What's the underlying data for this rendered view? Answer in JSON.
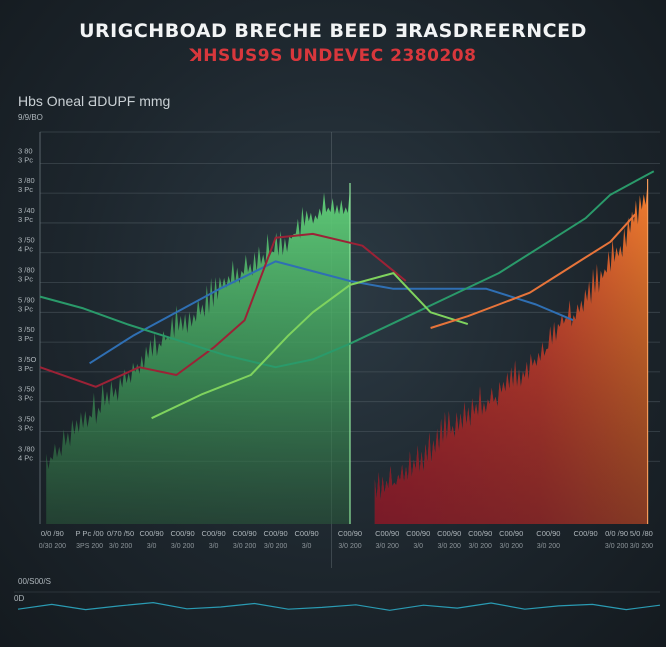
{
  "header": {
    "title": "URIGCHBOAD BRECHE  BEED ƎRASDREERNCED",
    "subtitle": "ꓘHSUS9S UNDEVEC  2380208"
  },
  "chart_heading": "Hbs Oneal ƋDUPF mmg",
  "y_unit": "9/9/BO",
  "mini_label": "00/S00/S",
  "mini_axis_label": "0D",
  "colors": {
    "green_area": "#4fbf6a",
    "red_area": "#e8483a",
    "orange_area": "#f07c32",
    "blue_line": "#2f6fb3",
    "crimson_line": "#9c2236",
    "teal_line": "#2a9a6a",
    "lime_line": "#7fd35e",
    "orange_line": "#e7743a",
    "mini_line": "#2a9bb3"
  },
  "chart_data": {
    "type": "area",
    "title": "URIGCHBOAD BRECHE  BEED ƎRASDREERNCED",
    "subtitle": "ꓘHSUS9S UNDEVEC  2380208",
    "ylim": [
      0,
      100
    ],
    "xlim": [
      0,
      100
    ],
    "grid": true,
    "y_ticks": [
      {
        "v": 100,
        "l1": "",
        "l2": ""
      },
      {
        "v": 92,
        "l1": "3 80",
        "l2": "3 Pc"
      },
      {
        "v": 84.4,
        "l1": "3 /80",
        "l2": "3 Pc"
      },
      {
        "v": 76.8,
        "l1": "3 /40",
        "l2": "3 Pc"
      },
      {
        "v": 69.2,
        "l1": "3 /50",
        "l2": "4 Pc"
      },
      {
        "v": 61.6,
        "l1": "3 /80",
        "l2": "3 Pc"
      },
      {
        "v": 54,
        "l1": "5 /90",
        "l2": "3 Pc"
      },
      {
        "v": 46.4,
        "l1": "3 /50",
        "l2": "3 Pc"
      },
      {
        "v": 38.8,
        "l1": "3 /5O",
        "l2": "3 Pc"
      },
      {
        "v": 31.2,
        "l1": "3 /50",
        "l2": "3 Pc"
      },
      {
        "v": 23.6,
        "l1": "3 /50",
        "l2": "3 Pc"
      },
      {
        "v": 16,
        "l1": "3 /80",
        "l2": "4 Pc"
      }
    ],
    "x_ticks": [
      {
        "x": 2,
        "l1": "0/0 /90",
        "l2": "0/30 200"
      },
      {
        "x": 8,
        "l1": "P Pc /00",
        "l2": "3PS 200"
      },
      {
        "x": 13,
        "l1": "0/70 /50",
        "l2": "3/0 200"
      },
      {
        "x": 18,
        "l1": "C00/90",
        "l2": "3/0"
      },
      {
        "x": 23,
        "l1": "C00/90",
        "l2": "3/0 200"
      },
      {
        "x": 28,
        "l1": "C00/90",
        "l2": "3/0"
      },
      {
        "x": 33,
        "l1": "C00/90",
        "l2": "3/0 200"
      },
      {
        "x": 38,
        "l1": "C00/90",
        "l2": "3/0 200"
      },
      {
        "x": 43,
        "l1": "C00/90",
        "l2": "3/0"
      },
      {
        "x": 50,
        "l1": "C00/90",
        "l2": "3/0 200"
      },
      {
        "x": 56,
        "l1": "C00/90",
        "l2": "3/0 200"
      },
      {
        "x": 61,
        "l1": "C00/90",
        "l2": "3/0"
      },
      {
        "x": 66,
        "l1": "C00/90",
        "l2": "3/0 200"
      },
      {
        "x": 71,
        "l1": "C00/90",
        "l2": "3/0 200"
      },
      {
        "x": 76,
        "l1": "C00/90",
        "l2": "3/0 200"
      },
      {
        "x": 82,
        "l1": "C00/90",
        "l2": "3/0 200"
      },
      {
        "x": 88,
        "l1": "C00/90",
        "l2": ""
      },
      {
        "x": 93,
        "l1": "0/0 /90",
        "l2": "3/0 200"
      },
      {
        "x": 97,
        "l1": "5/0 /80",
        "l2": "3/0 200"
      }
    ],
    "series": [
      {
        "type": "area",
        "color": "#4fbf6a",
        "x": [
          1,
          4,
          7,
          10,
          13,
          16,
          19,
          22,
          25,
          28,
          31,
          34,
          37,
          40,
          43,
          46,
          48,
          49.5,
          50
        ],
        "y": [
          15,
          21,
          25,
          30,
          35,
          41,
          45,
          50,
          52,
          58,
          63,
          66,
          69,
          72,
          77,
          80,
          79,
          81,
          83
        ]
      },
      {
        "type": "area",
        "color": "#e8483a",
        "x": [
          54,
          58,
          62,
          66,
          70,
          74,
          78,
          82,
          84,
          86,
          88,
          90,
          92,
          94,
          96,
          98
        ],
        "y": [
          7,
          11,
          16,
          24,
          28,
          33,
          38,
          45,
          52,
          53,
          57,
          61,
          66,
          71,
          78,
          84
        ]
      },
      {
        "type": "line",
        "color": "#2f6fb3",
        "x": [
          8,
          15,
          22,
          29,
          38,
          50,
          57,
          65,
          72,
          80,
          86
        ],
        "y": [
          41,
          48,
          54,
          60,
          67,
          62,
          60,
          60,
          60,
          56,
          52
        ]
      },
      {
        "type": "line",
        "color": "#9c2236",
        "x": [
          0,
          9,
          16,
          22,
          28,
          33,
          38,
          44,
          52,
          59
        ],
        "y": [
          40,
          35,
          40,
          38,
          45,
          52,
          73,
          74,
          71,
          62
        ]
      },
      {
        "type": "line",
        "color": "#2a9a6a",
        "x": [
          0,
          7,
          14,
          22,
          30,
          38,
          44,
          50,
          58,
          66,
          74,
          82,
          88,
          92,
          99
        ],
        "y": [
          58,
          55,
          51,
          47,
          43,
          40,
          42,
          46,
          52,
          58,
          64,
          72,
          78,
          84,
          90
        ]
      },
      {
        "type": "line",
        "color": "#7fd35e",
        "x": [
          18,
          26,
          34,
          40,
          44,
          50,
          57,
          63,
          69
        ],
        "y": [
          27,
          33,
          38,
          48,
          54,
          61,
          64,
          54,
          51
        ]
      },
      {
        "type": "line",
        "color": "#e7743a",
        "x": [
          63,
          69,
          74,
          79,
          84,
          88,
          92,
          96
        ],
        "y": [
          50,
          53,
          56,
          59,
          64,
          68,
          72,
          79
        ]
      }
    ],
    "mini_line": [
      0.4,
      0.62,
      0.38,
      0.55,
      0.7,
      0.42,
      0.5,
      0.66,
      0.4,
      0.48,
      0.6,
      0.35,
      0.58,
      0.45,
      0.68,
      0.4,
      0.55,
      0.62,
      0.38,
      0.58
    ]
  }
}
